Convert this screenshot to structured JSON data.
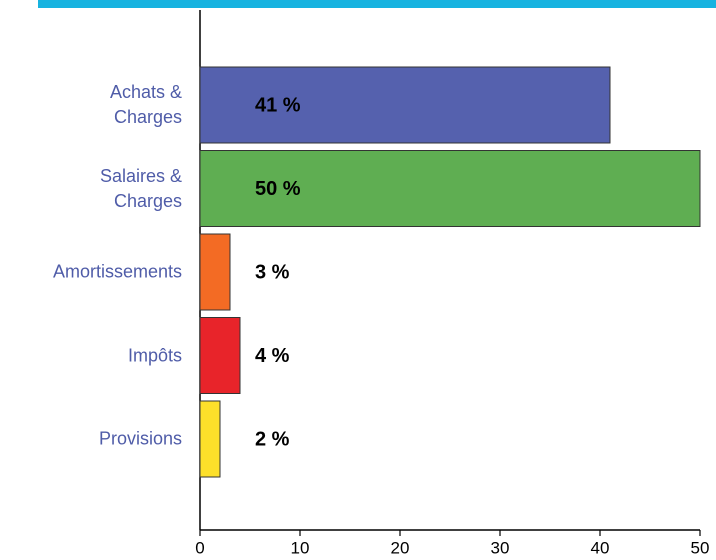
{
  "chart_data": {
    "type": "hbar",
    "categories": [
      "Achats &\nCharges",
      "Salaires &\nCharges",
      "Amortissements",
      "Impôts",
      "Provisions"
    ],
    "values": [
      41,
      50,
      3,
      4,
      2
    ],
    "value_labels": [
      "41 %",
      "50 %",
      "3 %",
      "4 %",
      "2 %"
    ],
    "colors": [
      "#5561ae",
      "#5fae52",
      "#f36b24",
      "#e8242a",
      "#fde02a"
    ],
    "xlim": [
      0,
      50
    ],
    "xticks": [
      0,
      10,
      20,
      30,
      40,
      50
    ]
  }
}
